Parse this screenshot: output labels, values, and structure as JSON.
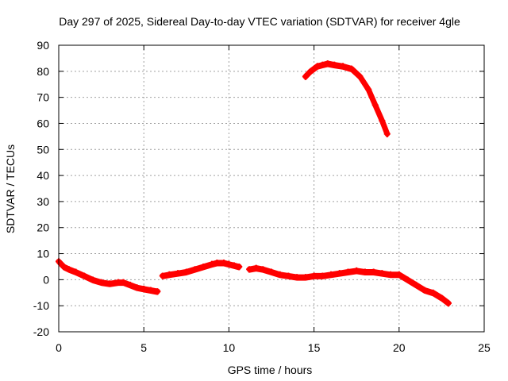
{
  "chart_data": {
    "type": "line",
    "title": "Day 297 of 2025, Sidereal Day-to-day VTEC variation (SDTVAR) for receiver 4gle",
    "xlabel": "GPS time / hours",
    "ylabel": "SDTVAR / TECUs",
    "xlim": [
      0,
      25
    ],
    "ylim": [
      -20,
      90
    ],
    "xticks": [
      0,
      5,
      10,
      15,
      20,
      25
    ],
    "yticks": [
      -20,
      -10,
      0,
      10,
      20,
      30,
      40,
      50,
      60,
      70,
      80,
      90
    ],
    "xtick_labels": [
      "0",
      "5",
      "10",
      "15",
      "20",
      "25"
    ],
    "ytick_labels": [
      "-20",
      "-10",
      "0",
      "10",
      "20",
      "30",
      "40",
      "50",
      "60",
      "70",
      "80",
      "90"
    ],
    "grid": true,
    "legend": "none",
    "color": "#ff0000",
    "series": [
      {
        "name": "segment-1",
        "x": [
          0.0,
          0.3,
          0.6,
          1.0,
          1.5,
          2.0,
          2.5,
          3.0,
          3.5,
          3.8,
          4.2,
          4.6,
          5.0,
          5.4,
          5.8
        ],
        "y": [
          7,
          5,
          4,
          3,
          1.5,
          0,
          -1,
          -1.5,
          -1,
          -1,
          -2,
          -3,
          -3.5,
          -4,
          -4.5
        ]
      },
      {
        "name": "segment-2",
        "x": [
          6.1,
          6.5,
          7.0,
          7.5,
          8.0,
          8.5,
          9.0,
          9.3,
          9.7,
          10.0,
          10.3,
          10.6
        ],
        "y": [
          1.5,
          2,
          2.5,
          3,
          4,
          5,
          6,
          6.5,
          6.5,
          6,
          5.5,
          5
        ]
      },
      {
        "name": "segment-3",
        "x": [
          11.2,
          11.6,
          12.0,
          12.5,
          13.0,
          13.5,
          14.0,
          14.5,
          15.0,
          15.5,
          16.0,
          16.5,
          17.0,
          17.5,
          18.0,
          18.5,
          19.0,
          19.5,
          20.0,
          20.5,
          21.0,
          21.5,
          22.0,
          22.5,
          22.9
        ],
        "y": [
          4,
          4.5,
          4,
          3,
          2,
          1.5,
          1,
          1,
          1.5,
          1.5,
          2,
          2.5,
          3,
          3.5,
          3,
          3,
          2.5,
          2,
          2,
          0,
          -2,
          -4,
          -5,
          -7,
          -9
        ]
      },
      {
        "name": "segment-4",
        "x": [
          14.5,
          14.8,
          15.2,
          15.5,
          15.8,
          16.2,
          16.7,
          17.2,
          17.7,
          18.2,
          18.6,
          19.0,
          19.3
        ],
        "y": [
          78,
          80,
          82,
          82.5,
          83,
          82.5,
          82,
          81,
          78,
          73,
          67,
          61,
          56
        ]
      }
    ]
  }
}
